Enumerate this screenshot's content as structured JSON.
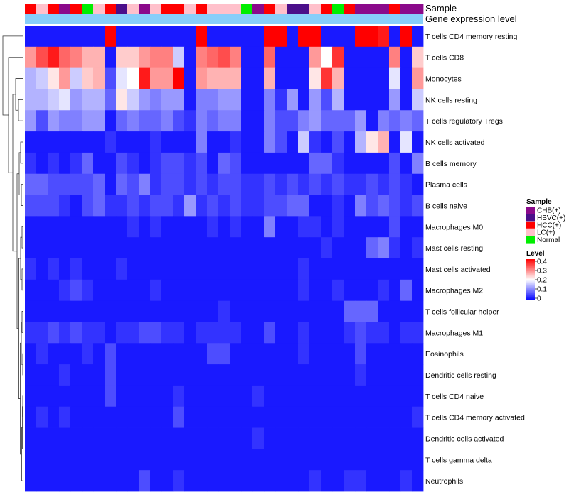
{
  "chart_data": {
    "type": "heatmap",
    "title": "",
    "annotation_tracks": [
      {
        "name": "Sample"
      },
      {
        "name": "Gene expression level"
      }
    ],
    "rows": [
      "T cells CD4 memory resting",
      "T cells CD8",
      "Monocytes",
      "NK cells resting",
      "T cells regulatory  Tregs",
      "NK cells activated",
      "B cells memory",
      "Plasma cells",
      "B cells naive",
      "Macrophages M0",
      "Mast cells resting",
      "Mast cells activated",
      "Macrophages M2",
      "T cells follicular helper",
      "Macrophages M1",
      "Eosinophils",
      "Dendritic cells resting",
      "T cells CD4 naive",
      "T cells CD4 memory activated",
      "Dendritic cells activated",
      "T cells gamma delta",
      "Neutrophils"
    ],
    "sample_groups": [
      "HCC(+)",
      "LC(+)",
      "HCC(+)",
      "CHB(+)",
      "HCC(+)",
      "Normal",
      "LC(+)",
      "HCC(+)",
      "HBVC(+)",
      "LC(+)",
      "CHB(+)",
      "LC(+)",
      "HCC(+)",
      "HCC(+)",
      "LC(+)",
      "HCC(+)",
      "LC(+)",
      "LC(+)",
      "LC(+)",
      "Normal",
      "CHB(+)",
      "HCC(+)",
      "LC(+)",
      "HBVC(+)",
      "HBVC(+)",
      "LC(+)",
      "HCC(+)",
      "Normal",
      "HCC(+)",
      "CHB(+)",
      "CHB(+)",
      "CHB(+)",
      "HCC(+)",
      "CHB(+)",
      "CHB(+)"
    ],
    "values": [
      [
        0.02,
        0.02,
        0.02,
        0.02,
        0.02,
        0.02,
        0.02,
        0.4,
        0.02,
        0.02,
        0.02,
        0.02,
        0.02,
        0.02,
        0.02,
        0.4,
        0.02,
        0.02,
        0.02,
        0.02,
        0.02,
        0.4,
        0.4,
        0.02,
        0.4,
        0.4,
        0.02,
        0.02,
        0.02,
        0.4,
        0.4,
        0.38,
        0.02,
        0.4,
        0.02
      ],
      [
        0.28,
        0.34,
        0.38,
        0.32,
        0.3,
        0.26,
        0.26,
        0.02,
        0.24,
        0.24,
        0.28,
        0.3,
        0.3,
        0.16,
        0.02,
        0.3,
        0.32,
        0.34,
        0.3,
        0.02,
        0.02,
        0.32,
        0.02,
        0.02,
        0.02,
        0.28,
        0.2,
        0.36,
        0.02,
        0.02,
        0.02,
        0.02,
        0.3,
        0.02,
        0.24
      ],
      [
        0.14,
        0.16,
        0.22,
        0.28,
        0.16,
        0.24,
        0.26,
        0.06,
        0.18,
        0.2,
        0.38,
        0.28,
        0.28,
        0.4,
        0.02,
        0.28,
        0.26,
        0.26,
        0.26,
        0.02,
        0.02,
        0.26,
        0.02,
        0.02,
        0.02,
        0.22,
        0.36,
        0.26,
        0.02,
        0.02,
        0.02,
        0.02,
        0.18,
        0.02,
        0.28
      ],
      [
        0.14,
        0.14,
        0.16,
        0.18,
        0.12,
        0.14,
        0.14,
        0.08,
        0.22,
        0.16,
        0.12,
        0.1,
        0.12,
        0.12,
        0.02,
        0.1,
        0.1,
        0.12,
        0.12,
        0.02,
        0.02,
        0.1,
        0.04,
        0.12,
        0.02,
        0.12,
        0.06,
        0.14,
        0.02,
        0.02,
        0.02,
        0.02,
        0.12,
        0.02,
        0.16
      ],
      [
        0.12,
        0.06,
        0.12,
        0.1,
        0.1,
        0.12,
        0.12,
        0.02,
        0.08,
        0.1,
        0.08,
        0.08,
        0.1,
        0.06,
        0.04,
        0.1,
        0.08,
        0.1,
        0.1,
        0.02,
        0.02,
        0.1,
        0.06,
        0.06,
        0.1,
        0.12,
        0.08,
        0.08,
        0.08,
        0.12,
        0.02,
        0.1,
        0.08,
        0.1,
        0.08
      ],
      [
        0.02,
        0.02,
        0.02,
        0.02,
        0.02,
        0.02,
        0.02,
        0.04,
        0.02,
        0.02,
        0.02,
        0.04,
        0.02,
        0.02,
        0.02,
        0.1,
        0.02,
        0.02,
        0.04,
        0.02,
        0.02,
        0.1,
        0.06,
        0.02,
        0.16,
        0.04,
        0.02,
        0.06,
        0.02,
        0.14,
        0.22,
        0.26,
        0.02,
        0.18,
        0.02
      ],
      [
        0.04,
        0.02,
        0.04,
        0.02,
        0.04,
        0.08,
        0.02,
        0.02,
        0.06,
        0.04,
        0.02,
        0.04,
        0.06,
        0.06,
        0.04,
        0.06,
        0.02,
        0.08,
        0.06,
        0.02,
        0.02,
        0.02,
        0.02,
        0.02,
        0.02,
        0.08,
        0.08,
        0.04,
        0.02,
        0.02,
        0.02,
        0.02,
        0.06,
        0.02,
        0.1
      ],
      [
        0.08,
        0.08,
        0.06,
        0.06,
        0.06,
        0.06,
        0.08,
        0.02,
        0.08,
        0.06,
        0.1,
        0.04,
        0.06,
        0.06,
        0.04,
        0.06,
        0.04,
        0.06,
        0.06,
        0.04,
        0.04,
        0.06,
        0.04,
        0.06,
        0.04,
        0.06,
        0.04,
        0.06,
        0.04,
        0.04,
        0.06,
        0.04,
        0.06,
        0.04,
        0.02
      ],
      [
        0.06,
        0.06,
        0.06,
        0.04,
        0.02,
        0.06,
        0.08,
        0.04,
        0.04,
        0.06,
        0.04,
        0.06,
        0.06,
        0.04,
        0.12,
        0.04,
        0.06,
        0.04,
        0.06,
        0.04,
        0.04,
        0.06,
        0.06,
        0.08,
        0.08,
        0.02,
        0.02,
        0.04,
        0.02,
        0.1,
        0.06,
        0.08,
        0.06,
        0.04,
        0.06
      ],
      [
        0.02,
        0.02,
        0.02,
        0.02,
        0.02,
        0.02,
        0.02,
        0.02,
        0.02,
        0.04,
        0.02,
        0.04,
        0.02,
        0.02,
        0.02,
        0.02,
        0.04,
        0.02,
        0.04,
        0.02,
        0.02,
        0.1,
        0.02,
        0.02,
        0.04,
        0.04,
        0.02,
        0.04,
        0.02,
        0.02,
        0.02,
        0.02,
        0.06,
        0.02,
        0.02
      ],
      [
        0.02,
        0.02,
        0.02,
        0.02,
        0.02,
        0.02,
        0.02,
        0.02,
        0.02,
        0.02,
        0.02,
        0.02,
        0.02,
        0.02,
        0.02,
        0.02,
        0.02,
        0.02,
        0.02,
        0.02,
        0.02,
        0.02,
        0.02,
        0.02,
        0.02,
        0.02,
        0.04,
        0.02,
        0.02,
        0.02,
        0.08,
        0.1,
        0.04,
        0.02,
        0.04
      ],
      [
        0.04,
        0.02,
        0.04,
        0.02,
        0.04,
        0.02,
        0.02,
        0.02,
        0.04,
        0.02,
        0.02,
        0.02,
        0.02,
        0.02,
        0.02,
        0.02,
        0.02,
        0.02,
        0.02,
        0.02,
        0.02,
        0.02,
        0.02,
        0.02,
        0.04,
        0.02,
        0.02,
        0.02,
        0.02,
        0.02,
        0.02,
        0.02,
        0.02,
        0.02,
        0.02
      ],
      [
        0.02,
        0.02,
        0.02,
        0.04,
        0.06,
        0.04,
        0.02,
        0.02,
        0.02,
        0.02,
        0.02,
        0.04,
        0.02,
        0.02,
        0.02,
        0.02,
        0.02,
        0.02,
        0.02,
        0.02,
        0.02,
        0.02,
        0.02,
        0.02,
        0.04,
        0.02,
        0.02,
        0.04,
        0.02,
        0.02,
        0.02,
        0.04,
        0.02,
        0.08,
        0.02
      ],
      [
        0.02,
        0.02,
        0.02,
        0.02,
        0.02,
        0.02,
        0.02,
        0.02,
        0.02,
        0.02,
        0.02,
        0.02,
        0.02,
        0.02,
        0.02,
        0.02,
        0.02,
        0.04,
        0.02,
        0.02,
        0.02,
        0.02,
        0.02,
        0.02,
        0.02,
        0.02,
        0.02,
        0.02,
        0.08,
        0.08,
        0.08,
        0.02,
        0.02,
        0.02,
        0.02
      ],
      [
        0.04,
        0.04,
        0.06,
        0.04,
        0.06,
        0.04,
        0.04,
        0.02,
        0.04,
        0.04,
        0.06,
        0.06,
        0.04,
        0.04,
        0.02,
        0.04,
        0.04,
        0.04,
        0.04,
        0.02,
        0.02,
        0.06,
        0.02,
        0.02,
        0.04,
        0.02,
        0.02,
        0.02,
        0.04,
        0.06,
        0.04,
        0.04,
        0.02,
        0.04,
        0.04
      ],
      [
        0.02,
        0.04,
        0.02,
        0.02,
        0.02,
        0.04,
        0.02,
        0.06,
        0.02,
        0.02,
        0.02,
        0.02,
        0.02,
        0.02,
        0.02,
        0.02,
        0.06,
        0.06,
        0.02,
        0.02,
        0.02,
        0.02,
        0.02,
        0.02,
        0.04,
        0.02,
        0.02,
        0.02,
        0.02,
        0.06,
        0.02,
        0.02,
        0.02,
        0.02,
        0.02
      ],
      [
        0.02,
        0.02,
        0.02,
        0.04,
        0.02,
        0.02,
        0.02,
        0.06,
        0.02,
        0.02,
        0.02,
        0.02,
        0.02,
        0.02,
        0.02,
        0.02,
        0.02,
        0.02,
        0.02,
        0.02,
        0.02,
        0.02,
        0.02,
        0.02,
        0.02,
        0.02,
        0.02,
        0.02,
        0.02,
        0.04,
        0.02,
        0.02,
        0.02,
        0.02,
        0.02
      ],
      [
        0.02,
        0.02,
        0.02,
        0.02,
        0.02,
        0.02,
        0.02,
        0.06,
        0.02,
        0.02,
        0.02,
        0.02,
        0.02,
        0.04,
        0.02,
        0.02,
        0.02,
        0.02,
        0.02,
        0.02,
        0.04,
        0.02,
        0.02,
        0.02,
        0.02,
        0.02,
        0.02,
        0.02,
        0.02,
        0.02,
        0.02,
        0.02,
        0.02,
        0.02,
        0.02
      ],
      [
        0.02,
        0.04,
        0.02,
        0.04,
        0.02,
        0.02,
        0.02,
        0.02,
        0.02,
        0.02,
        0.02,
        0.02,
        0.02,
        0.06,
        0.02,
        0.02,
        0.02,
        0.02,
        0.02,
        0.02,
        0.02,
        0.02,
        0.02,
        0.02,
        0.02,
        0.02,
        0.02,
        0.02,
        0.02,
        0.02,
        0.02,
        0.02,
        0.02,
        0.02,
        0.04
      ],
      [
        0.02,
        0.02,
        0.02,
        0.02,
        0.02,
        0.02,
        0.02,
        0.02,
        0.02,
        0.02,
        0.02,
        0.02,
        0.02,
        0.02,
        0.02,
        0.02,
        0.02,
        0.02,
        0.02,
        0.02,
        0.04,
        0.02,
        0.02,
        0.02,
        0.02,
        0.02,
        0.02,
        0.02,
        0.02,
        0.02,
        0.02,
        0.02,
        0.02,
        0.02,
        0.02
      ],
      [
        0.02,
        0.02,
        0.02,
        0.02,
        0.02,
        0.02,
        0.02,
        0.02,
        0.02,
        0.02,
        0.02,
        0.02,
        0.02,
        0.02,
        0.02,
        0.02,
        0.02,
        0.02,
        0.02,
        0.02,
        0.02,
        0.02,
        0.02,
        0.02,
        0.02,
        0.02,
        0.02,
        0.02,
        0.02,
        0.02,
        0.02,
        0.02,
        0.02,
        0.02,
        0.02
      ],
      [
        0.02,
        0.02,
        0.02,
        0.02,
        0.02,
        0.02,
        0.02,
        0.02,
        0.02,
        0.02,
        0.06,
        0.02,
        0.02,
        0.04,
        0.02,
        0.02,
        0.02,
        0.02,
        0.02,
        0.02,
        0.02,
        0.02,
        0.02,
        0.02,
        0.02,
        0.04,
        0.02,
        0.02,
        0.04,
        0.04,
        0.02,
        0.02,
        0.02,
        0.04,
        0.02
      ]
    ],
    "color_scale": {
      "min": 0,
      "max": 0.4,
      "stops": [
        "#0000ff",
        "#ffffff",
        "#ff0000"
      ],
      "ticks": [
        "0",
        "0.1",
        "0.2",
        "0.3",
        "0.4"
      ]
    },
    "legends": {
      "sample": {
        "title": "Sample",
        "entries": [
          {
            "label": "CHB(+)",
            "color": "#8b0a8b"
          },
          {
            "label": "HBVC(+)",
            "color": "#4b0f8a"
          },
          {
            "label": "HCC(+)",
            "color": "#ff0000"
          },
          {
            "label": "LC(+)",
            "color": "#ffc0cb"
          },
          {
            "label": "Normal",
            "color": "#00ee00"
          }
        ]
      },
      "level": {
        "title": "Level"
      }
    },
    "expression_level_color": "#87cefa",
    "dendrogram": "row"
  }
}
